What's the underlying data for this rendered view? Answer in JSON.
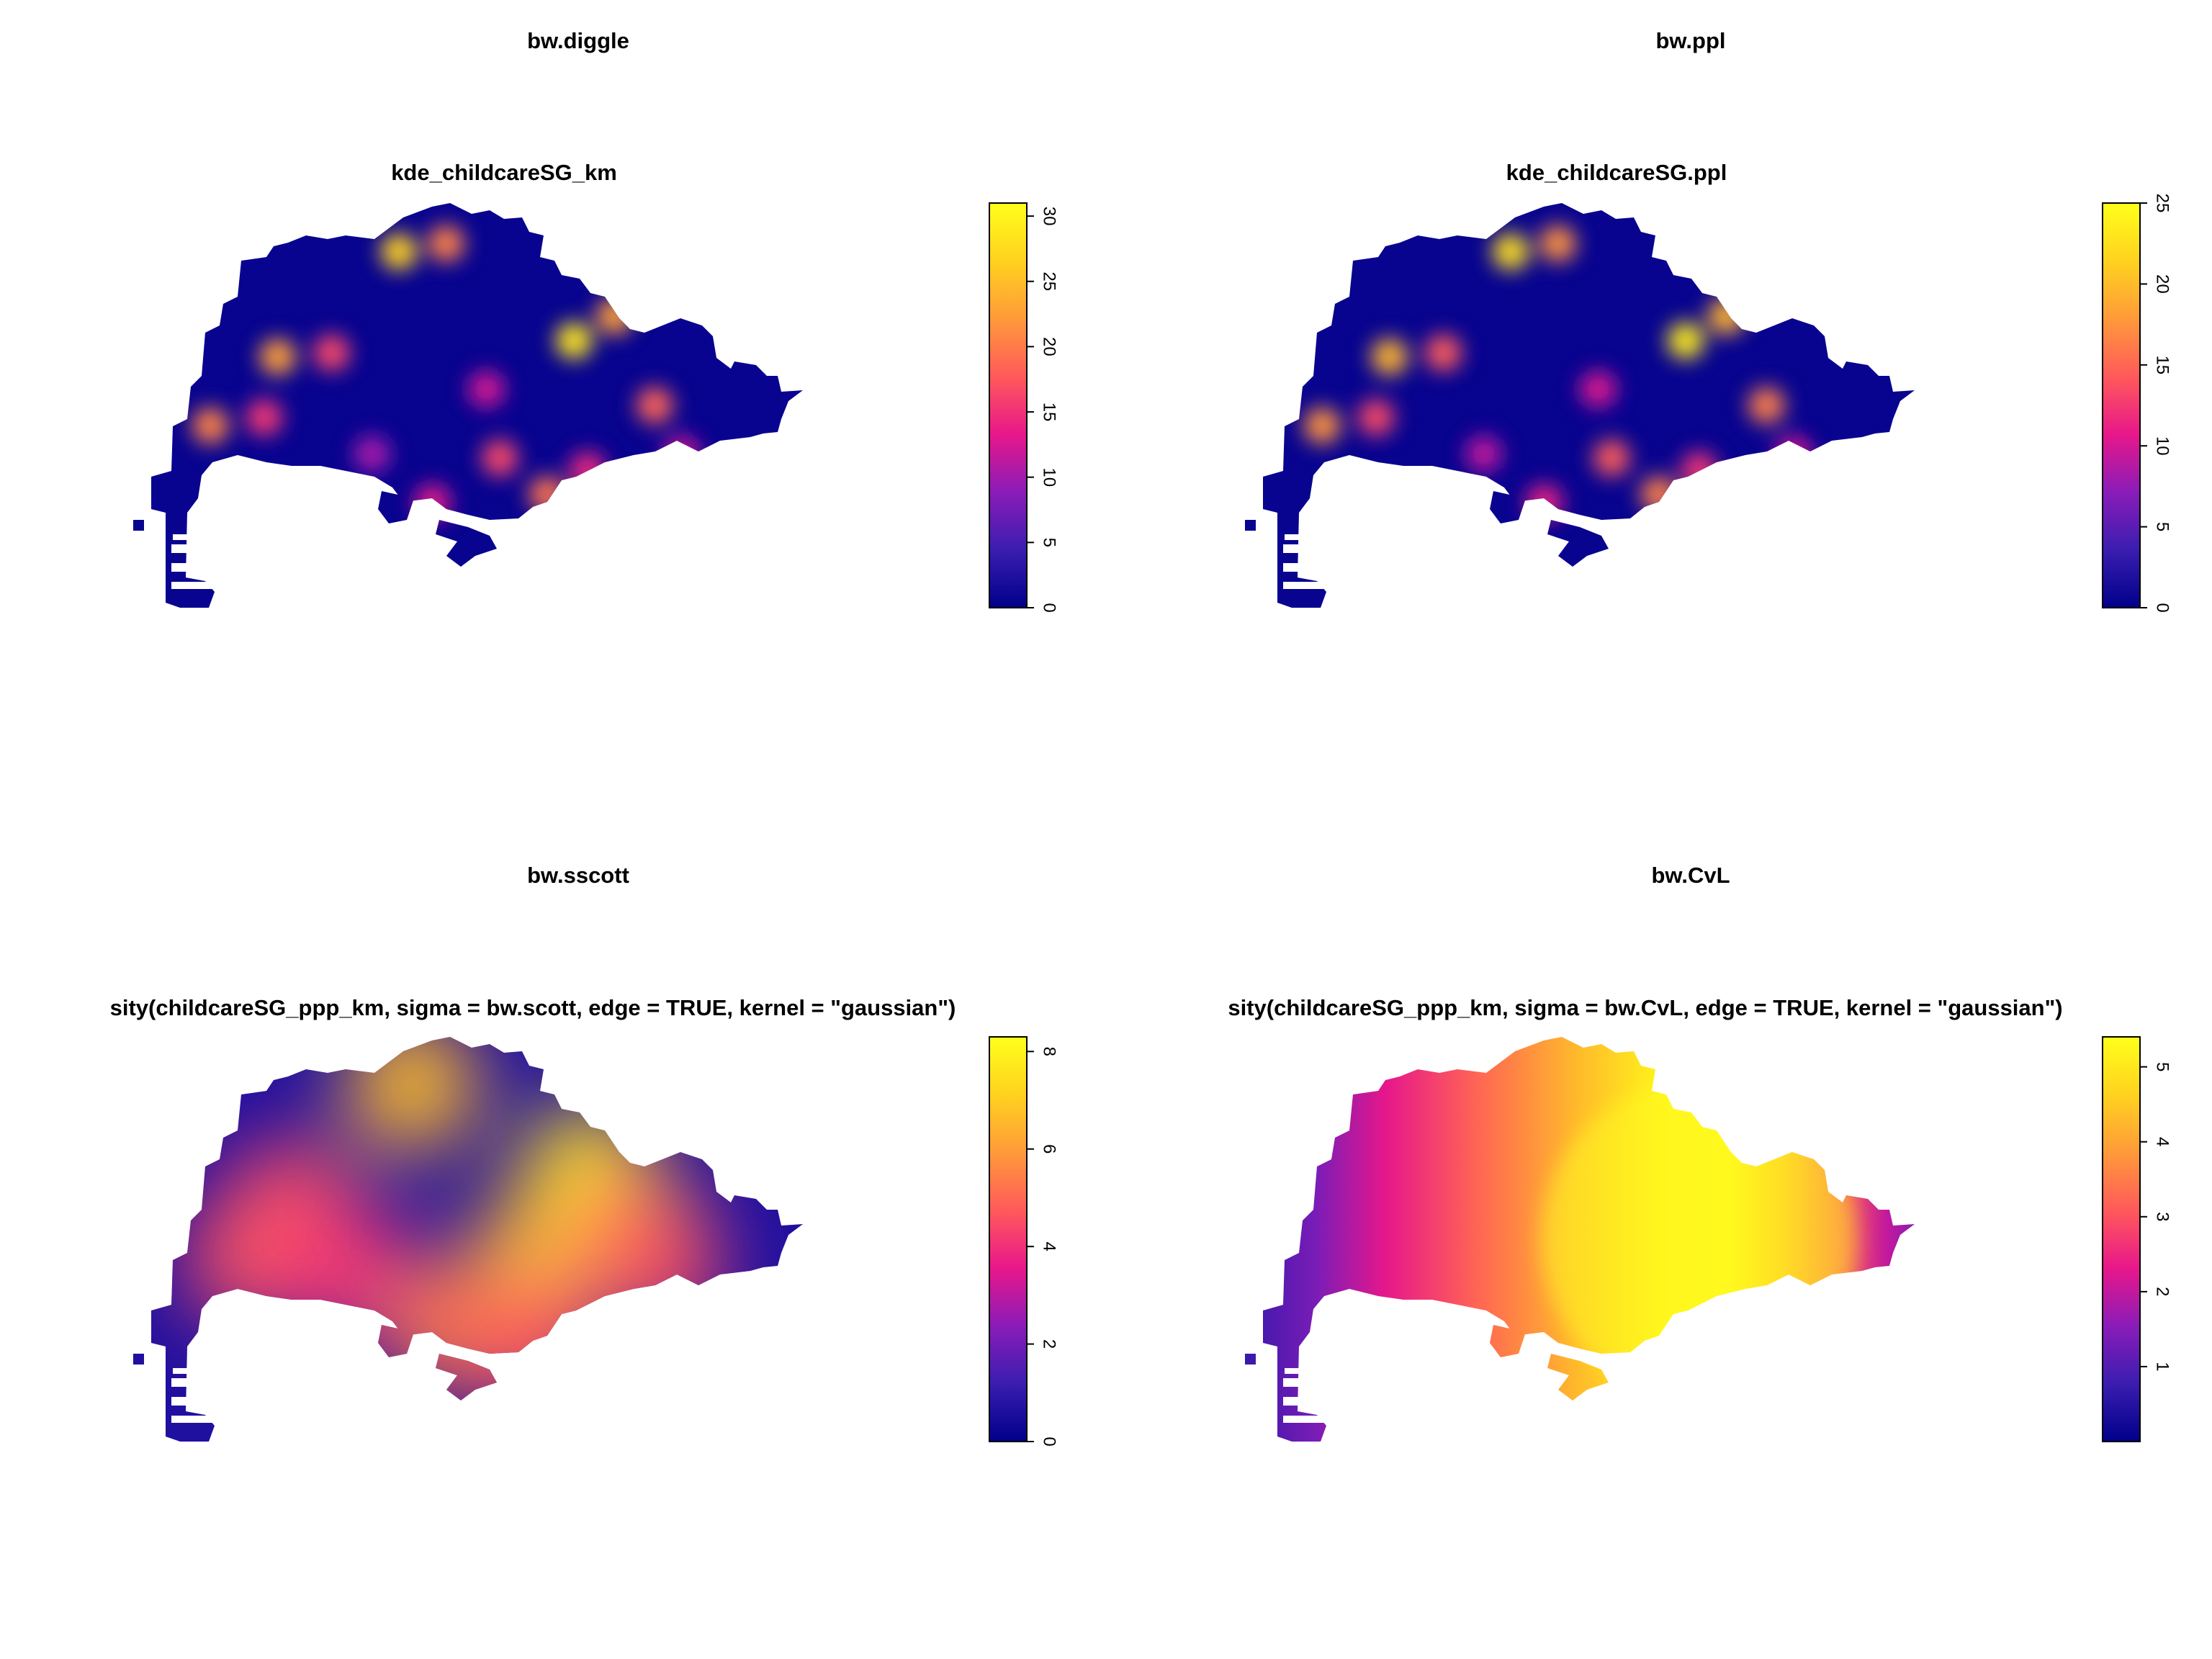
{
  "chart_data": [
    {
      "type": "heatmap",
      "title": "bw.diggle",
      "subtitle": "kde_childcareSG_km",
      "colorbar": {
        "min": 0,
        "max": 31,
        "ticks": [
          0,
          5,
          10,
          15,
          20,
          25,
          30
        ]
      },
      "colormap": [
        "#00008B",
        "#3A1DB0",
        "#8A1CB8",
        "#E8178A",
        "#FF5A5A",
        "#FF9A3A",
        "#FFD21F",
        "#FFFF1A"
      ],
      "hotspots": [
        {
          "x": 0.4,
          "y": 0.12,
          "value": 26
        },
        {
          "x": 0.47,
          "y": 0.1,
          "value": 20
        },
        {
          "x": 0.22,
          "y": 0.38,
          "value": 22
        },
        {
          "x": 0.3,
          "y": 0.37,
          "value": 16
        },
        {
          "x": 0.12,
          "y": 0.55,
          "value": 20
        },
        {
          "x": 0.2,
          "y": 0.53,
          "value": 15
        },
        {
          "x": 0.66,
          "y": 0.34,
          "value": 28
        },
        {
          "x": 0.72,
          "y": 0.28,
          "value": 22
        },
        {
          "x": 0.78,
          "y": 0.5,
          "value": 18
        },
        {
          "x": 0.55,
          "y": 0.63,
          "value": 16
        },
        {
          "x": 0.62,
          "y": 0.72,
          "value": 19
        },
        {
          "x": 0.68,
          "y": 0.66,
          "value": 14
        },
        {
          "x": 0.45,
          "y": 0.74,
          "value": 13
        },
        {
          "x": 0.53,
          "y": 0.46,
          "value": 12
        },
        {
          "x": 0.82,
          "y": 0.62,
          "value": 12
        },
        {
          "x": 0.36,
          "y": 0.62,
          "value": 10
        }
      ]
    },
    {
      "type": "heatmap",
      "title": "bw.ppl",
      "subtitle": "kde_childcareSG.ppl",
      "colorbar": {
        "min": 0,
        "max": 25,
        "ticks": [
          0,
          5,
          10,
          15,
          20,
          25
        ]
      },
      "colormap": [
        "#00008B",
        "#3A1DB0",
        "#8A1CB8",
        "#E8178A",
        "#FF5A5A",
        "#FF9A3A",
        "#FFD21F",
        "#FFFF1A"
      ],
      "hotspots": [
        {
          "x": 0.4,
          "y": 0.12,
          "value": 22
        },
        {
          "x": 0.47,
          "y": 0.1,
          "value": 17
        },
        {
          "x": 0.22,
          "y": 0.38,
          "value": 19
        },
        {
          "x": 0.3,
          "y": 0.37,
          "value": 14
        },
        {
          "x": 0.12,
          "y": 0.55,
          "value": 17
        },
        {
          "x": 0.2,
          "y": 0.53,
          "value": 13
        },
        {
          "x": 0.66,
          "y": 0.34,
          "value": 23
        },
        {
          "x": 0.72,
          "y": 0.28,
          "value": 19
        },
        {
          "x": 0.78,
          "y": 0.5,
          "value": 16
        },
        {
          "x": 0.55,
          "y": 0.63,
          "value": 14
        },
        {
          "x": 0.62,
          "y": 0.72,
          "value": 16
        },
        {
          "x": 0.68,
          "y": 0.66,
          "value": 12
        },
        {
          "x": 0.45,
          "y": 0.74,
          "value": 11
        },
        {
          "x": 0.53,
          "y": 0.46,
          "value": 10
        },
        {
          "x": 0.82,
          "y": 0.62,
          "value": 10
        },
        {
          "x": 0.36,
          "y": 0.62,
          "value": 9
        }
      ]
    },
    {
      "type": "heatmap",
      "title": "bw.sscott",
      "subtitle": "sity(childcareSG_ppp_km, sigma = bw.scott, edge = TRUE, kernel = \"gaussian\")",
      "colorbar": {
        "min": 0,
        "max": 8.3,
        "ticks": [
          0,
          2,
          4,
          6,
          8
        ]
      },
      "colormap": [
        "#00008B",
        "#3A1DB0",
        "#8A1CB8",
        "#E8178A",
        "#FF5A5A",
        "#FF9A3A",
        "#FFD21F",
        "#FFFF1A"
      ],
      "hotspots": [
        {
          "x": 0.42,
          "y": 0.12,
          "value": 6.5
        },
        {
          "x": 0.24,
          "y": 0.42,
          "value": 4.5
        },
        {
          "x": 0.18,
          "y": 0.55,
          "value": 4.5
        },
        {
          "x": 0.32,
          "y": 0.58,
          "value": 4.0
        },
        {
          "x": 0.68,
          "y": 0.34,
          "value": 7.8
        },
        {
          "x": 0.74,
          "y": 0.46,
          "value": 5.8
        },
        {
          "x": 0.6,
          "y": 0.56,
          "value": 6.5
        },
        {
          "x": 0.78,
          "y": 0.56,
          "value": 4.5
        },
        {
          "x": 0.48,
          "y": 0.72,
          "value": 5.2
        },
        {
          "x": 0.6,
          "y": 0.76,
          "value": 4.6
        }
      ]
    },
    {
      "type": "heatmap",
      "title": "bw.CvL",
      "subtitle": "sity(childcareSG_ppp_km, sigma = bw.CvL, edge = TRUE, kernel = \"gaussian\")",
      "colorbar": {
        "min": 0,
        "max": 5.4,
        "ticks": [
          1,
          2,
          3,
          4,
          5
        ]
      },
      "colormap": [
        "#00008B",
        "#3A1DB0",
        "#8A1CB8",
        "#E8178A",
        "#FF5A5A",
        "#FF9A3A",
        "#FFD21F",
        "#FFFF1A"
      ],
      "hotspots": [
        {
          "x": 0.68,
          "y": 0.5,
          "value": 5.3
        }
      ]
    }
  ]
}
